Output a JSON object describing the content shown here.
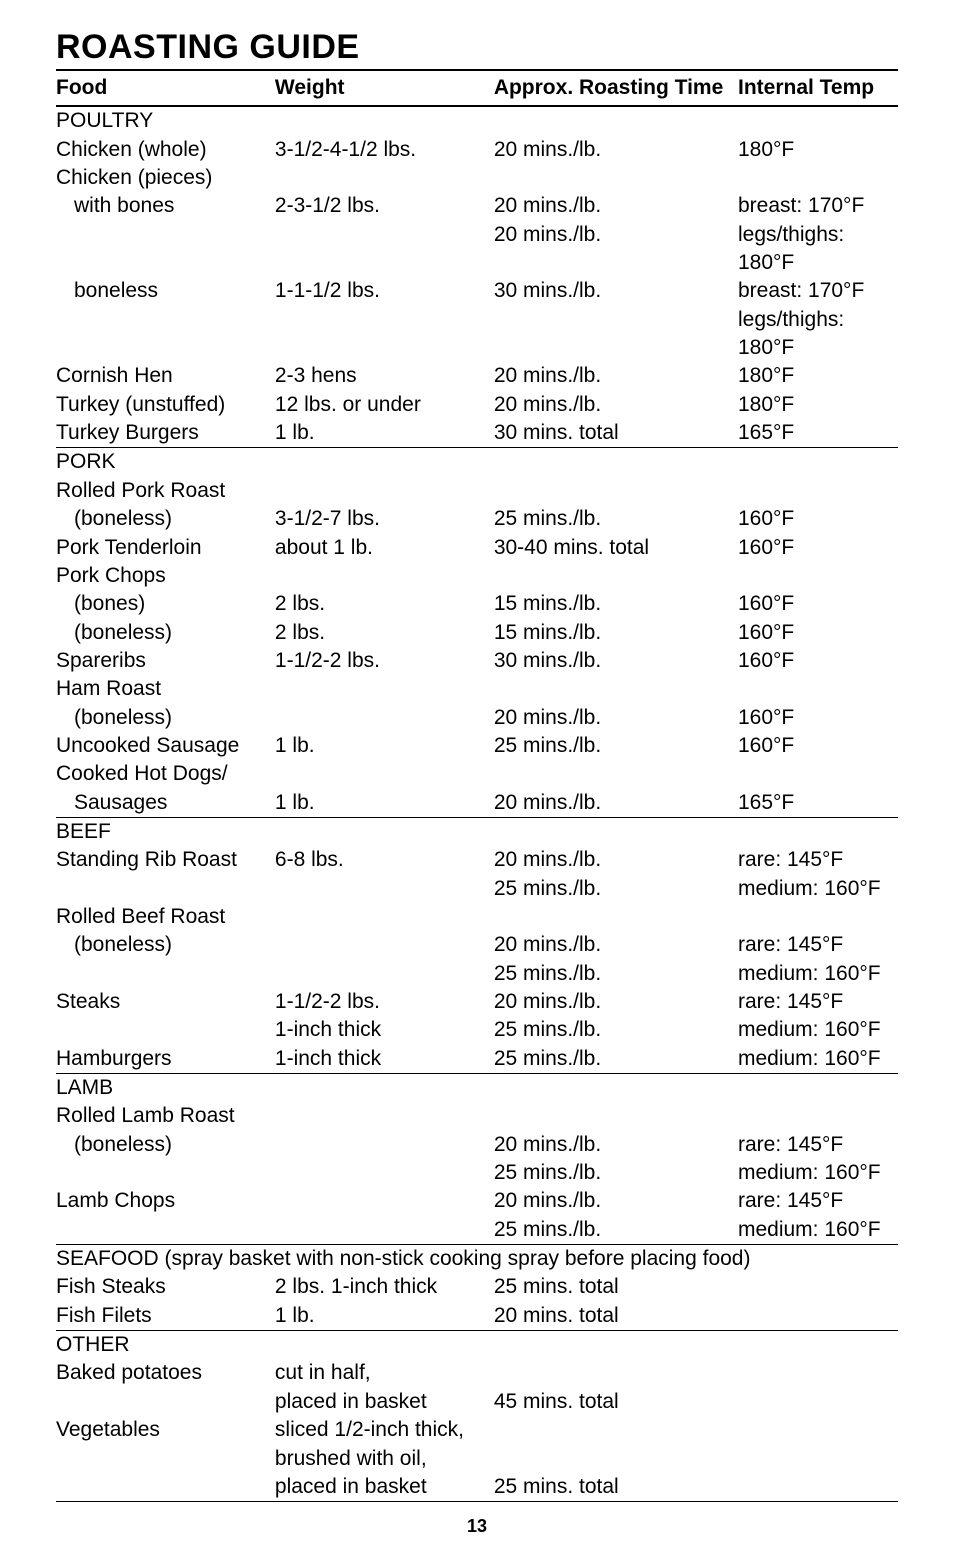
{
  "title": "ROASTING GUIDE",
  "header": {
    "food": "Food",
    "weight": "Weight",
    "time": "Approx. Roasting Time",
    "temp": "Internal Temp"
  },
  "rows": [
    {
      "food": "POULTRY",
      "weight": "",
      "time": "",
      "temp": "",
      "indent": 0,
      "rule": false
    },
    {
      "food": "Chicken (whole)",
      "weight": "3-1/2-4-1/2 lbs.",
      "time": "20 mins./lb.",
      "temp": "180°F",
      "indent": 0,
      "rule": false
    },
    {
      "food": "Chicken (pieces)",
      "weight": "",
      "time": "",
      "temp": "",
      "indent": 0,
      "rule": false
    },
    {
      "food": "with bones",
      "weight": "2-3-1/2 lbs.",
      "time": "20 mins./lb.",
      "temp": "breast: 170°F",
      "indent": 1,
      "rule": false
    },
    {
      "food": "",
      "weight": "",
      "time": "20 mins./lb.",
      "temp": "legs/thighs: 180°F",
      "indent": 0,
      "rule": false
    },
    {
      "food": "boneless",
      "weight": "1-1-1/2 lbs.",
      "time": "30 mins./lb.",
      "temp": "breast: 170°F",
      "indent": 1,
      "rule": false
    },
    {
      "food": "",
      "weight": "",
      "time": "",
      "temp": "legs/thighs: 180°F",
      "indent": 0,
      "rule": false
    },
    {
      "food": "Cornish Hen",
      "weight": "2-3 hens",
      "time": "20 mins./lb.",
      "temp": "180°F",
      "indent": 0,
      "rule": false
    },
    {
      "food": "Turkey (unstuffed)",
      "weight": "12 lbs. or under",
      "time": "20 mins./lb.",
      "temp": "180°F",
      "indent": 0,
      "rule": false
    },
    {
      "food": "Turkey Burgers",
      "weight": "1 lb.",
      "time": "30 mins. total",
      "temp": "165°F",
      "indent": 0,
      "rule": true
    },
    {
      "food": "PORK",
      "weight": "",
      "time": "",
      "temp": "",
      "indent": 0,
      "rule": false
    },
    {
      "food": "Rolled Pork Roast",
      "weight": "",
      "time": "",
      "temp": "",
      "indent": 0,
      "rule": false
    },
    {
      "food": "(boneless)",
      "weight": "3-1/2-7 lbs.",
      "time": "25 mins./lb.",
      "temp": "160°F",
      "indent": 1,
      "rule": false
    },
    {
      "food": "Pork Tenderloin",
      "weight": "about 1 lb.",
      "time": "30-40 mins. total",
      "temp": "160°F",
      "indent": 0,
      "rule": false
    },
    {
      "food": "Pork Chops",
      "weight": "",
      "time": "",
      "temp": "",
      "indent": 0,
      "rule": false
    },
    {
      "food": "(bones)",
      "weight": "2 lbs.",
      "time": "15 mins./lb.",
      "temp": "160°F",
      "indent": 1,
      "rule": false
    },
    {
      "food": "(boneless)",
      "weight": "2 lbs.",
      "time": "15 mins./lb.",
      "temp": "160°F",
      "indent": 1,
      "rule": false
    },
    {
      "food": "Spareribs",
      "weight": "1-1/2-2 lbs.",
      "time": "30 mins./lb.",
      "temp": "160°F",
      "indent": 0,
      "rule": false
    },
    {
      "food": "Ham Roast",
      "weight": "",
      "time": "",
      "temp": "",
      "indent": 0,
      "rule": false
    },
    {
      "food": "(boneless)",
      "weight": "",
      "time": "20 mins./lb.",
      "temp": "160°F",
      "indent": 1,
      "rule": false
    },
    {
      "food": "Uncooked Sausage",
      "weight": "1 lb.",
      "time": "25 mins./lb.",
      "temp": "160°F",
      "indent": 0,
      "rule": false
    },
    {
      "food": "Cooked Hot Dogs/",
      "weight": "",
      "time": "",
      "temp": "",
      "indent": 0,
      "rule": false
    },
    {
      "food": "Sausages",
      "weight": "1 lb.",
      "time": "20 mins./lb.",
      "temp": "165°F",
      "indent": 1,
      "rule": true
    },
    {
      "food": "BEEF",
      "weight": "",
      "time": "",
      "temp": "",
      "indent": 0,
      "rule": false
    },
    {
      "food": "Standing Rib Roast",
      "weight": "6-8 lbs.",
      "time": "20 mins./lb.",
      "temp": "rare: 145°F",
      "indent": 0,
      "rule": false
    },
    {
      "food": "",
      "weight": "",
      "time": "25 mins./lb.",
      "temp": "medium: 160°F",
      "indent": 0,
      "rule": false
    },
    {
      "food": "Rolled Beef Roast",
      "weight": "",
      "time": "",
      "temp": "",
      "indent": 0,
      "rule": false
    },
    {
      "food": "(boneless)",
      "weight": "",
      "time": "20 mins./lb.",
      "temp": "rare: 145°F",
      "indent": 1,
      "rule": false
    },
    {
      "food": "",
      "weight": "",
      "time": "25 mins./lb.",
      "temp": "medium: 160°F",
      "indent": 0,
      "rule": false
    },
    {
      "food": "Steaks",
      "weight": "1-1/2-2 lbs.",
      "time": "20 mins./lb.",
      "temp": "rare: 145°F",
      "indent": 0,
      "rule": false
    },
    {
      "food": "",
      "weight": "1-inch thick",
      "time": "25 mins./lb.",
      "temp": "medium: 160°F",
      "indent": 0,
      "rule": false
    },
    {
      "food": "Hamburgers",
      "weight": "1-inch thick",
      "time": "25 mins./lb.",
      "temp": "medium: 160°F",
      "indent": 0,
      "rule": true
    },
    {
      "food": "LAMB",
      "weight": "",
      "time": "",
      "temp": "",
      "indent": 0,
      "rule": false
    },
    {
      "food": "Rolled Lamb Roast",
      "weight": "",
      "time": "",
      "temp": "",
      "indent": 0,
      "rule": false
    },
    {
      "food": "(boneless)",
      "weight": "",
      "time": "20 mins./lb.",
      "temp": "rare: 145°F",
      "indent": 1,
      "rule": false
    },
    {
      "food": "",
      "weight": "",
      "time": "25 mins./lb.",
      "temp": "medium: 160°F",
      "indent": 0,
      "rule": false
    },
    {
      "food": "Lamb Chops",
      "weight": "",
      "time": "20 mins./lb.",
      "temp": "rare: 145°F",
      "indent": 0,
      "rule": false
    },
    {
      "food": "",
      "weight": "",
      "time": "25 mins./lb.",
      "temp": "medium: 160°F",
      "indent": 0,
      "rule": true
    },
    {
      "food": "SEAFOOD (spray basket with non-stick cooking spray before placing food)",
      "weight": "",
      "time": "",
      "temp": "",
      "indent": 0,
      "rule": false,
      "span": true
    },
    {
      "food": "Fish Steaks",
      "weight": "2 lbs. 1-inch thick",
      "time": "25 mins. total",
      "temp": "",
      "indent": 0,
      "rule": false
    },
    {
      "food": "Fish Filets",
      "weight": "1 lb.",
      "time": "20 mins. total",
      "temp": "",
      "indent": 0,
      "rule": true
    },
    {
      "food": "OTHER",
      "weight": "",
      "time": "",
      "temp": "",
      "indent": 0,
      "rule": false
    },
    {
      "food": "Baked potatoes",
      "weight": "cut in half,",
      "time": "",
      "temp": "",
      "indent": 0,
      "rule": false
    },
    {
      "food": "",
      "weight": "placed in basket",
      "time": "45 mins. total",
      "temp": "",
      "indent": 0,
      "rule": false
    },
    {
      "food": "Vegetables",
      "weight": "sliced 1/2-inch thick,",
      "time": "",
      "temp": "",
      "indent": 0,
      "rule": false
    },
    {
      "food": "",
      "weight": "brushed with oil,",
      "time": "",
      "temp": "",
      "indent": 0,
      "rule": false
    },
    {
      "food": "",
      "weight": "placed in basket",
      "time": "25 mins. total",
      "temp": "",
      "indent": 0,
      "rule": true
    }
  ],
  "pagenum": "13"
}
